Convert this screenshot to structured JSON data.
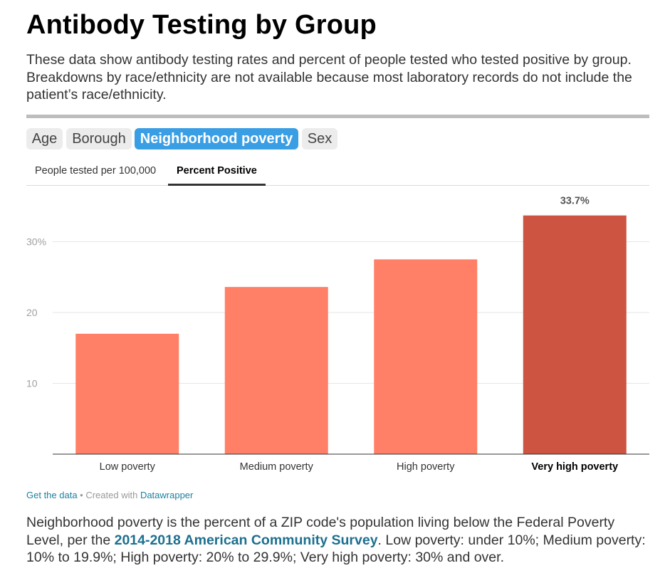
{
  "title": "Antibody Testing by Group",
  "intro": "These data show antibody testing rates and percent of people tested who tested positive by group. Breakdowns by race/ethnicity are not available because most laboratory records do not include the patient’s race/ethnicity.",
  "group_tabs": {
    "age": "Age",
    "borough": "Borough",
    "neighborhood_poverty": "Neighborhood poverty",
    "sex": "Sex",
    "active": "Neighborhood poverty"
  },
  "metric_tabs": {
    "tested": "People tested per 100,000",
    "positive": "Percent Positive",
    "active": "Percent Positive"
  },
  "colors": {
    "accent": "#3a9ee4",
    "bar": "#ff8066",
    "bar_highlight": "#cc5440"
  },
  "chart_data": {
    "type": "bar",
    "categories": [
      "Low poverty",
      "Medium poverty",
      "High poverty",
      "Very high poverty"
    ],
    "values": [
      17.0,
      23.6,
      27.5,
      33.7
    ],
    "highlight_index": 3,
    "highlight_label": "33.7%",
    "ylim": [
      0,
      34
    ],
    "yticks": [
      {
        "value": 10,
        "label": "10"
      },
      {
        "value": 20,
        "label": "20"
      },
      {
        "value": 30,
        "label": "30%"
      }
    ],
    "grid": true,
    "legend": "none"
  },
  "footer": {
    "get_data": "Get the data",
    "separator": " • Created with ",
    "datawrapper": "Datawrapper"
  },
  "note": {
    "before": "Neighborhood poverty is the percent of a ZIP code's population living below the Federal Poverty Level, per the ",
    "link": "2014-2018 American Community Survey",
    "after": ". Low poverty: under 10%; Medium poverty: 10% to 19.9%; High poverty: 20% to 29.9%; Very high poverty: 30% and over."
  }
}
